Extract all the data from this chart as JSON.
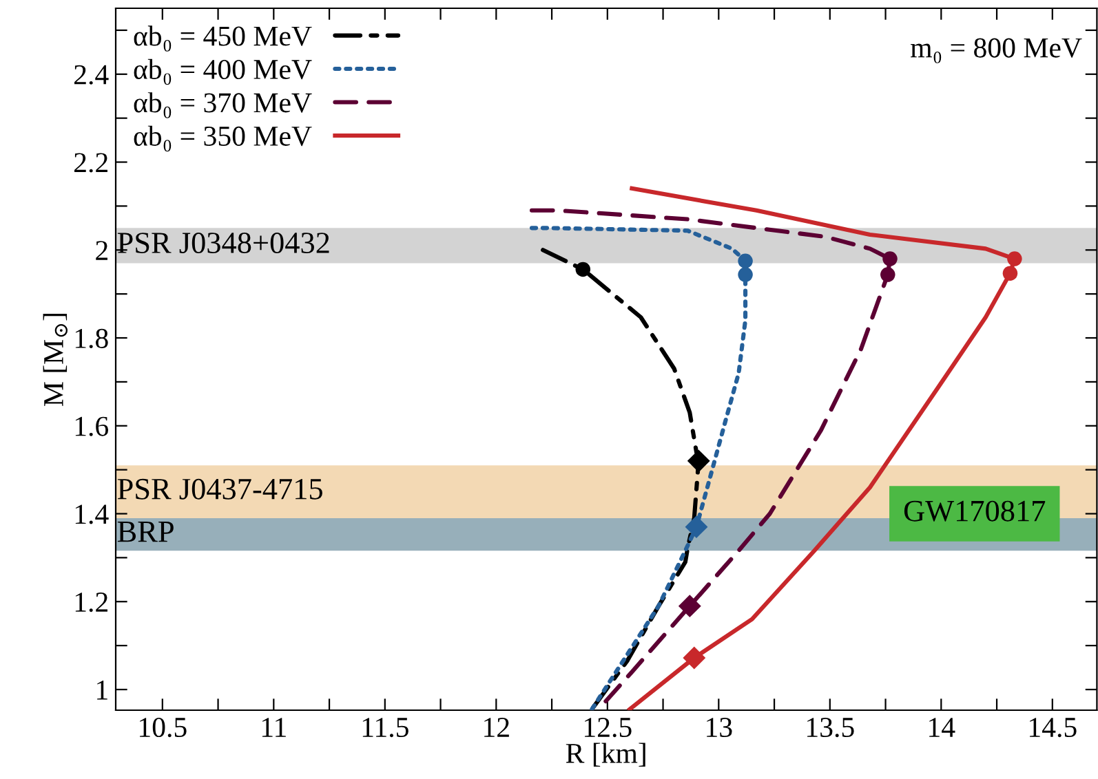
{
  "chart_data": {
    "type": "line",
    "xlabel": "R [km]",
    "ylabel": "M [M$_{⊙}$]",
    "xlim": [
      10.29,
      14.7
    ],
    "ylim": [
      0.953,
      2.55
    ],
    "xticks": [
      10.5,
      {
        "value": 10.75,
        "label": null
      },
      11,
      {
        "value": 11.25,
        "label": null
      },
      11.5,
      {
        "value": 11.75,
        "label": null
      },
      12,
      {
        "value": 12.25,
        "label": null
      },
      12.5,
      {
        "value": 12.75,
        "label": null
      },
      13,
      {
        "value": 13.25,
        "label": null
      },
      13.5,
      {
        "value": 13.75,
        "label": null
      },
      14,
      {
        "value": 14.25,
        "label": null
      },
      14.5
    ],
    "yticks": [
      1,
      {
        "value": 1.1,
        "label": null
      },
      1.2,
      {
        "value": 1.3,
        "label": null
      },
      1.4,
      {
        "value": 1.5,
        "label": null
      },
      1.6,
      {
        "value": 1.7,
        "label": null
      },
      1.8,
      {
        "value": 1.9,
        "label": null
      },
      2,
      {
        "value": 2.1,
        "label": null
      },
      2.2,
      {
        "value": 2.3,
        "label": null
      },
      2.4,
      {
        "value": 2.5,
        "label": null
      }
    ],
    "grid": false,
    "legend": "top left",
    "annotations": [
      "m₀ = 800 MeV",
      {
        "text": "GW170817",
        "x": 14.15,
        "y": 1.4
      }
    ],
    "bands": [
      {
        "axis": "y",
        "from": 1.97,
        "to": 2.05,
        "label": "PSR J0348+0432",
        "color": "#d3d3d3"
      },
      {
        "axis": "y",
        "from": 1.39,
        "to": 1.51,
        "label": "PSR J0437-4715",
        "color": "#f3d9b4"
      },
      {
        "axis": "y",
        "from": 1.316,
        "to": 1.39,
        "label": "BRP",
        "color": "#97afba"
      }
    ],
    "series": [
      {
        "name": "αb₀ = 450 MeV",
        "line_style": "dashdot",
        "color": "#000000",
        "x": [
          12.21,
          12.39,
          12.65,
          12.8,
          12.87,
          12.9,
          12.91,
          12.89,
          12.86,
          12.85,
          12.73,
          12.59,
          12.43
        ],
        "values": [
          2.0,
          1.956,
          1.847,
          1.73,
          1.63,
          1.54,
          1.52,
          1.39,
          1.32,
          1.29,
          1.19,
          1.066,
          0.955
        ]
      },
      {
        "name": "αb₀ = 400 MeV",
        "line_style": "dotted",
        "color": "#25609a",
        "x": [
          12.16,
          12.24,
          12.86,
          13.06,
          13.12,
          13.12,
          13.12,
          13.09,
          13.03,
          12.96,
          12.9,
          12.85,
          12.73,
          12.43
        ],
        "values": [
          2.05,
          2.05,
          2.044,
          2.003,
          1.975,
          1.944,
          1.84,
          1.72,
          1.61,
          1.48,
          1.37,
          1.316,
          1.19,
          0.955
        ]
      },
      {
        "name": "αb₀ = 370 MeV",
        "line_style": "dashed",
        "color": "#5c0033",
        "x": [
          12.16,
          12.28,
          12.86,
          13.48,
          13.68,
          13.77,
          13.76,
          13.64,
          13.46,
          13.23,
          13.09,
          12.87,
          12.61,
          12.46
        ],
        "values": [
          2.09,
          2.09,
          2.07,
          2.03,
          2.003,
          1.98,
          1.944,
          1.775,
          1.59,
          1.4,
          1.316,
          1.19,
          1.04,
          0.955
        ]
      },
      {
        "name": "αb₀ = 350 MeV",
        "line_style": "solid",
        "color": "#c8282b",
        "x": [
          12.61,
          13.17,
          13.68,
          14.2,
          14.33,
          14.31,
          14.2,
          13.99,
          13.68,
          13.43,
          13.15,
          12.89,
          12.6
        ],
        "values": [
          2.14,
          2.09,
          2.035,
          2.003,
          1.98,
          1.947,
          1.847,
          1.69,
          1.46,
          1.316,
          1.16,
          1.072,
          0.955
        ]
      },
      {
        "type": "scatter",
        "marker": "circle",
        "color": "#000000",
        "x": [
          12.39
        ],
        "values": [
          1.956
        ]
      },
      {
        "type": "scatter",
        "marker": "diamond",
        "color": "#000000",
        "x": [
          12.91
        ],
        "values": [
          1.52
        ]
      },
      {
        "type": "scatter",
        "marker": "circle",
        "color": "#25609a",
        "x": [
          13.12,
          13.12
        ],
        "values": [
          1.975,
          1.944
        ]
      },
      {
        "type": "scatter",
        "marker": "diamond",
        "color": "#25609a",
        "x": [
          12.9
        ],
        "values": [
          1.37
        ]
      },
      {
        "type": "scatter",
        "marker": "circle",
        "color": "#5c0033",
        "x": [
          13.77,
          13.76
        ],
        "values": [
          1.98,
          1.944
        ]
      },
      {
        "type": "scatter",
        "marker": "diamond",
        "color": "#5c0033",
        "x": [
          12.87
        ],
        "values": [
          1.19
        ]
      },
      {
        "type": "scatter",
        "marker": "circle",
        "color": "#c8282b",
        "x": [
          14.33,
          14.31
        ],
        "values": [
          1.98,
          1.947
        ]
      },
      {
        "type": "scatter",
        "marker": "diamond",
        "color": "#c8282b",
        "x": [
          12.89
        ],
        "values": [
          1.072
        ]
      }
    ]
  }
}
